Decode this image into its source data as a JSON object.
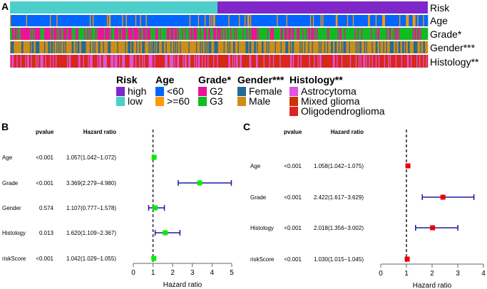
{
  "panel_labels": {
    "a": "A",
    "b": "B",
    "c": "C"
  },
  "heatmap": {
    "rows": [
      "Risk",
      "Age",
      "Grade*",
      "Gender***",
      "Histology**"
    ],
    "legend": [
      {
        "title": "Risk",
        "items": [
          {
            "label": "high",
            "color": "#7f27c9"
          },
          {
            "label": "low",
            "color": "#4ccfcb"
          }
        ]
      },
      {
        "title": "Age",
        "items": [
          {
            "label": "<60",
            "color": "#0066ff"
          },
          {
            "label": ">=60",
            "color": "#ff9900"
          }
        ]
      },
      {
        "title": "Grade*",
        "items": [
          {
            "label": "G2",
            "color": "#ee1199"
          },
          {
            "label": "G3",
            "color": "#11bb22"
          }
        ]
      },
      {
        "title": "Gender***",
        "items": [
          {
            "label": "Female",
            "color": "#236b96"
          },
          {
            "label": "Male",
            "color": "#cf8d17"
          }
        ]
      },
      {
        "title": "Histology**",
        "items": [
          {
            "label": "Astrocytoma",
            "color": "#dd55dd"
          },
          {
            "label": "Mixed glioma",
            "color": "#cc3300"
          },
          {
            "label": "Oligodendroglioma",
            "color": "#dd2222"
          }
        ]
      }
    ]
  },
  "chart_data": [
    {
      "type": "forest",
      "title": "B",
      "header": {
        "pvalue": "pvalue",
        "hr": "Hazard ratio"
      },
      "xlabel": "Hazard ratio",
      "xlim": [
        0,
        5
      ],
      "ticks": [
        "0",
        "1",
        "2",
        "3",
        "4",
        "5"
      ],
      "reference": 1,
      "marker_color": "#00ee00",
      "rows": [
        {
          "name": "Age",
          "pvalue": "<0.001",
          "hr_text": "1.057(1.042−1.072)",
          "hr": 1.057,
          "lo": 1.042,
          "hi": 1.072
        },
        {
          "name": "Grade",
          "pvalue": "<0.001",
          "hr_text": "3.369(2.279−4.980)",
          "hr": 3.369,
          "lo": 2.279,
          "hi": 4.98
        },
        {
          "name": "Gender",
          "pvalue": "0.574",
          "hr_text": "1.107(0.777−1.578)",
          "hr": 1.107,
          "lo": 0.777,
          "hi": 1.578
        },
        {
          "name": "Histology",
          "pvalue": "0.013",
          "hr_text": "1.620(1.109−2.367)",
          "hr": 1.62,
          "lo": 1.109,
          "hi": 2.367
        },
        {
          "name": "riskScore",
          "pvalue": "<0.001",
          "hr_text": "1.042(1.029−1.055)",
          "hr": 1.042,
          "lo": 1.029,
          "hi": 1.055
        }
      ]
    },
    {
      "type": "forest",
      "title": "C",
      "header": {
        "pvalue": "pvalue",
        "hr": "Hazard ratio"
      },
      "xlabel": "Hazard ratio",
      "xlim": [
        0,
        4
      ],
      "ticks": [
        "0",
        "1",
        "2",
        "3",
        "4"
      ],
      "reference": 1,
      "marker_color": "#ee0000",
      "rows": [
        {
          "name": "Age",
          "pvalue": "<0.001",
          "hr_text": "1.058(1.042−1.075)",
          "hr": 1.058,
          "lo": 1.042,
          "hi": 1.075
        },
        {
          "name": "Grade",
          "pvalue": "<0.001",
          "hr_text": "2.422(1.617−3.629)",
          "hr": 2.422,
          "lo": 1.617,
          "hi": 3.629
        },
        {
          "name": "Histology",
          "pvalue": "<0.001",
          "hr_text": "2.018(1.356−3.002)",
          "hr": 2.018,
          "lo": 1.356,
          "hi": 3.002
        },
        {
          "name": "riskScore",
          "pvalue": "<0.001",
          "hr_text": "1.030(1.015−1.045)",
          "hr": 1.03,
          "lo": 1.015,
          "hi": 1.045
        }
      ]
    }
  ]
}
